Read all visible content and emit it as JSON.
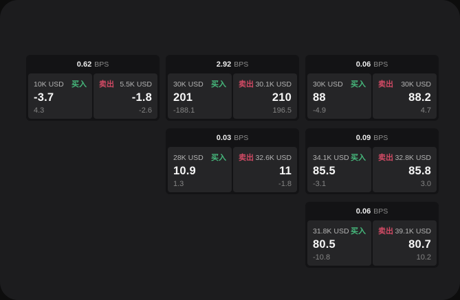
{
  "labels": {
    "buy": "买入",
    "sell": "卖出"
  },
  "colors": {
    "buy": "#46b97c",
    "sell": "#d04a64",
    "screen_bg": "#1c1c1e",
    "card_bg": "#131315",
    "subcard_bg": "#252527"
  },
  "cards": [
    {
      "bps": "0.62",
      "bps_unit": "BPS",
      "buy": {
        "amount": "10K USD",
        "value": "-3.7",
        "delta": "4.3"
      },
      "sell": {
        "amount": "5.5K USD",
        "value": "-1.8",
        "delta": "-2.6"
      }
    },
    {
      "bps": "2.92",
      "bps_unit": "BPS",
      "buy": {
        "amount": "30K USD",
        "value": "201",
        "delta": "-188.1"
      },
      "sell": {
        "amount": "30.1K USD",
        "value": "210",
        "delta": "196.5"
      }
    },
    {
      "bps": "0.06",
      "bps_unit": "BPS",
      "buy": {
        "amount": "30K USD",
        "value": "88",
        "delta": "-4.9"
      },
      "sell": {
        "amount": "30K USD",
        "value": "88.2",
        "delta": "4.7"
      }
    },
    {
      "bps": "0.03",
      "bps_unit": "BPS",
      "buy": {
        "amount": "28K USD",
        "value": "10.9",
        "delta": "1.3"
      },
      "sell": {
        "amount": "32.6K USD",
        "value": "11",
        "delta": "-1.8"
      }
    },
    {
      "bps": "0.09",
      "bps_unit": "BPS",
      "buy": {
        "amount": "34.1K USD",
        "value": "85.5",
        "delta": "-3.1"
      },
      "sell": {
        "amount": "32.8K USD",
        "value": "85.8",
        "delta": "3.0"
      }
    },
    {
      "bps": "0.06",
      "bps_unit": "BPS",
      "buy": {
        "amount": "31.8K USD",
        "value": "80.5",
        "delta": "-10.8"
      },
      "sell": {
        "amount": "39.1K USD",
        "value": "80.7",
        "delta": "10.2"
      }
    }
  ]
}
